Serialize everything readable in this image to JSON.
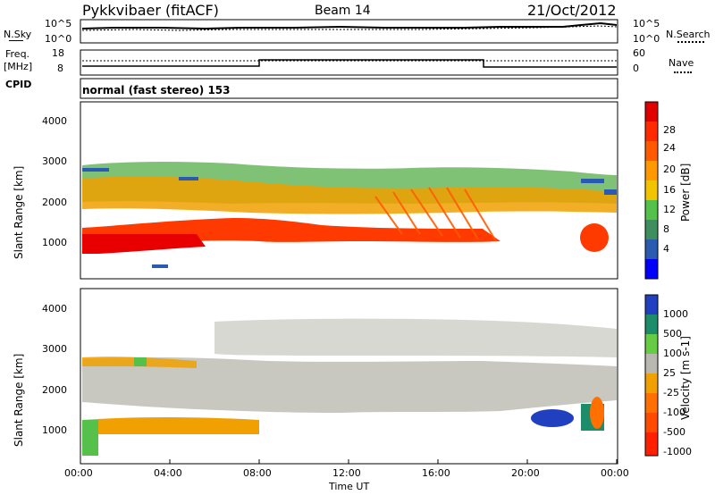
{
  "header": {
    "title": "Pykkvibaer (fitACF)",
    "beam": "Beam 14",
    "date": "21/Oct/2012"
  },
  "noise": {
    "left_label": "N.Sky",
    "right_label": "N.Search",
    "left_ticks": [
      "10^5",
      "10^0"
    ],
    "right_ticks": [
      "10^5",
      "10^0"
    ]
  },
  "freq": {
    "left_label_1": "Freq.",
    "left_label_2": "[MHz]",
    "right_label": "Nave",
    "left_ticks": [
      "18",
      "8"
    ],
    "right_ticks": [
      "60",
      "0"
    ]
  },
  "cpid": {
    "label": "CPID",
    "value": "normal (fast stereo) 153"
  },
  "axes": {
    "ylabel": "Slant Range [km]",
    "xlabel": "Time UT",
    "yticks": [
      "4000",
      "3000",
      "2000",
      "1000"
    ],
    "xticks": [
      "00:00",
      "04:00",
      "08:00",
      "12:00",
      "16:00",
      "20:00",
      "00:00"
    ]
  },
  "colors": {
    "power_scale": [
      "#0000ff",
      "#2a5bb0",
      "#3f8f5e",
      "#55c04a",
      "#f2c400",
      "#ff9900",
      "#ff5a00",
      "#ff2a00",
      "#e00000"
    ],
    "velocity_scale": [
      "#2040c0",
      "#1c8c6a",
      "#66cc44",
      "#b8b8b0",
      "#f0a000",
      "#ff7000",
      "#ff2000"
    ],
    "velocity_gray": "#c8c8c0"
  },
  "chart_data": [
    {
      "type": "heatmap",
      "title": "",
      "xlabel": "Time UT",
      "ylabel": "Slant Range [km]",
      "xlim": [
        "00:00",
        "24:00"
      ],
      "ylim": [
        200,
        4600
      ],
      "colorbar_label": "Power [dB]",
      "colorbar_ticks": [
        28,
        24,
        20,
        16,
        12,
        8,
        4
      ],
      "colorbar_range": [
        0,
        32
      ],
      "features": [
        {
          "desc": "strong echo band",
          "time_range_h": [
            0,
            20
          ],
          "range_km": [
            850,
            1350
          ],
          "power_db": 28
        },
        {
          "desc": "diagonal streaks",
          "time_range_h": [
            8,
            18
          ],
          "range_km": [
            1200,
            2600
          ],
          "power_db": 22
        },
        {
          "desc": "upper scatter",
          "time_range_h": [
            0,
            24
          ],
          "range_km": [
            1800,
            3200
          ],
          "power_db": 12
        },
        {
          "desc": "late echo",
          "time_range_h": [
            21.5,
            24
          ],
          "range_km": [
            900,
            1500
          ],
          "power_db": 24
        }
      ]
    },
    {
      "type": "heatmap",
      "title": "",
      "xlabel": "Time UT",
      "ylabel": "Slant Range [km]",
      "xlim": [
        "00:00",
        "24:00"
      ],
      "ylim": [
        200,
        4600
      ],
      "colorbar_label": "Velocity [m s-1]",
      "colorbar_ticks": [
        1000,
        500,
        100,
        25,
        -25,
        -100,
        -500,
        -1000
      ],
      "features": [
        {
          "desc": "ground scatter (near zero)",
          "time_range_h": [
            0,
            24
          ],
          "range_km": [
            900,
            2800
          ],
          "velocity_ms": 0
        },
        {
          "desc": "negative velocity band",
          "time_range_h": [
            0,
            8
          ],
          "range_km": [
            700,
            1100
          ],
          "velocity_ms": -200
        },
        {
          "desc": "positive velocity patch",
          "time_range_h": [
            20.5,
            23
          ],
          "range_km": [
            800,
            1200
          ],
          "velocity_ms": 800
        }
      ]
    }
  ]
}
